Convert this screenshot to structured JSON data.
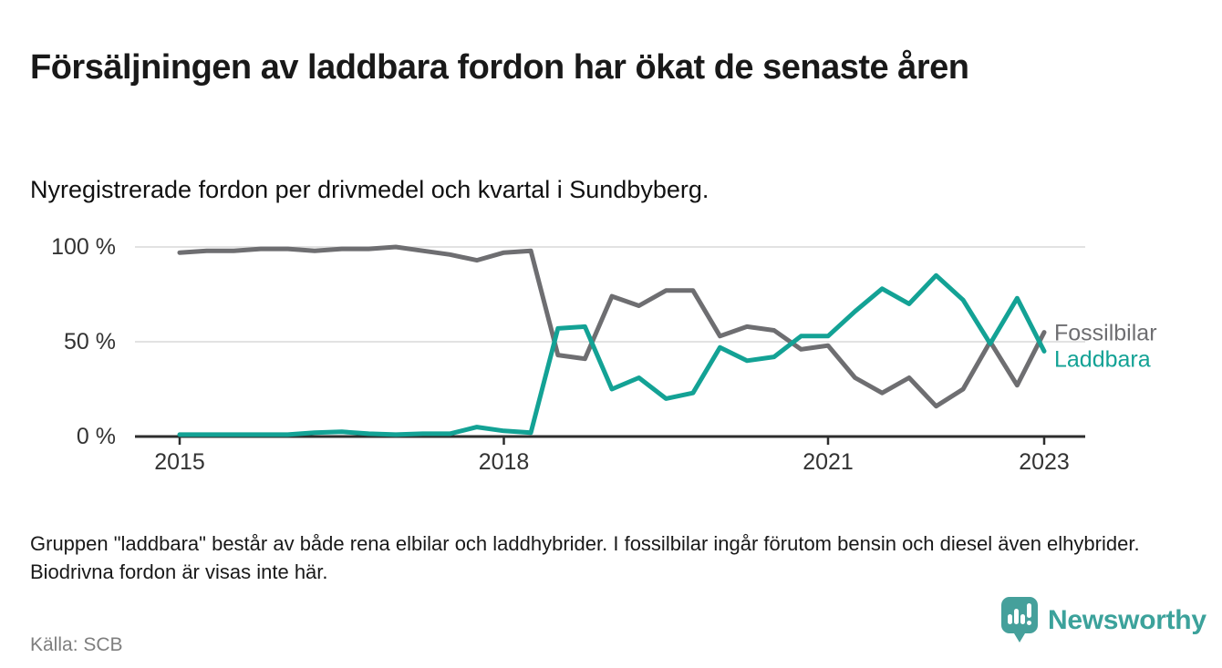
{
  "header": {
    "title": "Försäljningen av laddbara fordon har ökat de senaste åren",
    "subtitle": "Nyregistrerade fordon per drivmedel och kvartal i Sundbyberg."
  },
  "chart_data": {
    "type": "line",
    "x": [
      "2015-Q1",
      "2015-Q2",
      "2015-Q3",
      "2015-Q4",
      "2016-Q1",
      "2016-Q2",
      "2016-Q3",
      "2016-Q4",
      "2017-Q1",
      "2017-Q2",
      "2017-Q3",
      "2017-Q4",
      "2018-Q1",
      "2018-Q2",
      "2018-Q3",
      "2018-Q4",
      "2019-Q1",
      "2019-Q2",
      "2019-Q3",
      "2019-Q4",
      "2020-Q1",
      "2020-Q2",
      "2020-Q3",
      "2020-Q4",
      "2021-Q1",
      "2021-Q2",
      "2021-Q3",
      "2021-Q4",
      "2022-Q1",
      "2022-Q2",
      "2022-Q3",
      "2022-Q4",
      "2023-Q1"
    ],
    "series": [
      {
        "name": "Fossilbilar",
        "color": "#6e6e71",
        "values": [
          97,
          98,
          98,
          99,
          99,
          98,
          99,
          99,
          100,
          98,
          96,
          93,
          97,
          98,
          43,
          41,
          74,
          69,
          77,
          77,
          53,
          58,
          56,
          46,
          48,
          31,
          23,
          31,
          16,
          25,
          50,
          27,
          55
        ]
      },
      {
        "name": "Laddbara",
        "color": "#13a295",
        "values": [
          1,
          1,
          1,
          1,
          1,
          2,
          2.5,
          1.5,
          1,
          1.5,
          1.5,
          5,
          3,
          2,
          57,
          58,
          25,
          31,
          20,
          23,
          47,
          40,
          42,
          53,
          53,
          66,
          78,
          70,
          85,
          72,
          49,
          73,
          45
        ]
      }
    ],
    "title": "Försäljningen av laddbara fordon har ökat de senaste åren",
    "xlabel": "",
    "ylabel": "",
    "ylim": [
      0,
      100
    ],
    "unit": "%",
    "grid": "horizontal",
    "legend_position": "line-end-labels-right",
    "y_ticks": [
      {
        "label": "0 %",
        "value": 0
      },
      {
        "label": "50 %",
        "value": 50
      },
      {
        "label": "100 %",
        "value": 100
      }
    ],
    "x_ticks": [
      {
        "label": "2015",
        "index": 0
      },
      {
        "label": "2018",
        "index": 12
      },
      {
        "label": "2021",
        "index": 24
      },
      {
        "label": "2023",
        "index": 32
      }
    ]
  },
  "footnote": "Gruppen \"laddbara\" består av både rena elbilar och laddhybrider. I fossilbilar ingår förutom bensin och diesel även elhybrider. Biodrivna fordon är visas inte här.",
  "source": "Källa: SCB",
  "branding": {
    "logo_text": "Newsworthy",
    "logo_icon": "bar-chart-pin-icon",
    "color": "#45a09b"
  }
}
